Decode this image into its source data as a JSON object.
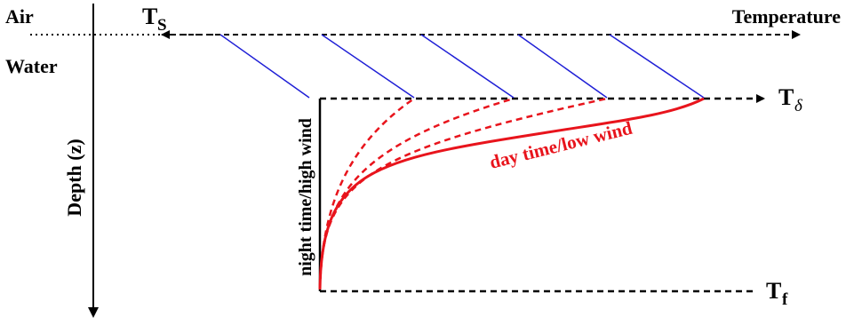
{
  "labels": {
    "air": "Air",
    "water": "Water",
    "depth_axis": "Depth (z)",
    "temperature_axis": "Temperature",
    "night_curve": "night time/high wind",
    "day_curve": "day time/low wind"
  },
  "symbols": {
    "surface": {
      "base": "T",
      "sub": "S"
    },
    "skin": {
      "base": "T",
      "sub": "δ"
    },
    "foundation": {
      "base": "T",
      "sub": "f"
    }
  },
  "colors": {
    "axis": "#000000",
    "profile_day": "#e8141c",
    "skin_lines": "#1f1fd6"
  }
}
